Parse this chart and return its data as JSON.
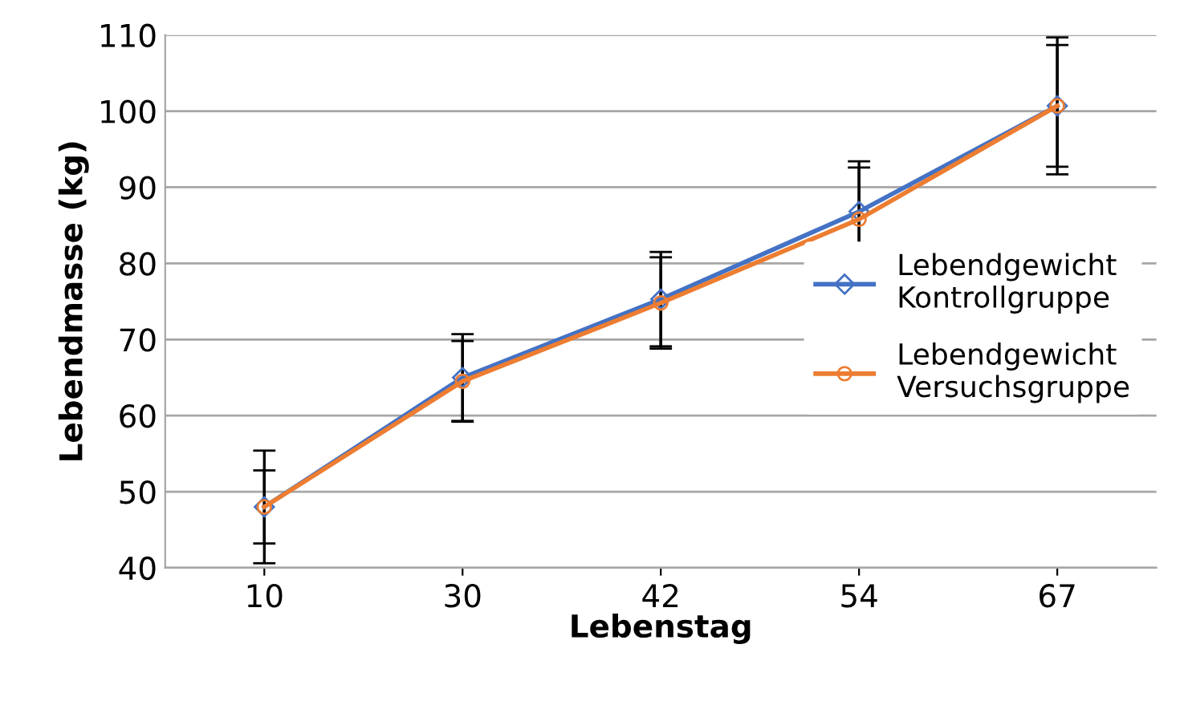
{
  "chart_data": {
    "type": "line",
    "xlabel": "Lebenstag",
    "ylabel": "Lebendmasse (kg)",
    "categories": [
      "10",
      "30",
      "42",
      "54",
      "67"
    ],
    "series": [
      {
        "name": "Lebendgewicht Kontrollgruppe",
        "color": "#4472c4",
        "marker": "diamond",
        "values": [
          48,
          65,
          75.3,
          86.8,
          100.7
        ],
        "errors": [
          7.4,
          5.7,
          6.2,
          6.6,
          9
        ]
      },
      {
        "name": "Lebendgewicht Versuchsgruppe",
        "color": "#ed7d31",
        "marker": "circle",
        "values": [
          48,
          64.5,
          74.8,
          85.8,
          100.7
        ],
        "errors": [
          4.8,
          5.3,
          6,
          6.8,
          8
        ]
      }
    ],
    "ylim": [
      40,
      110
    ],
    "yticks": [
      40,
      50,
      60,
      70,
      80,
      90,
      100,
      110
    ],
    "grid": "y",
    "legend": "right"
  }
}
